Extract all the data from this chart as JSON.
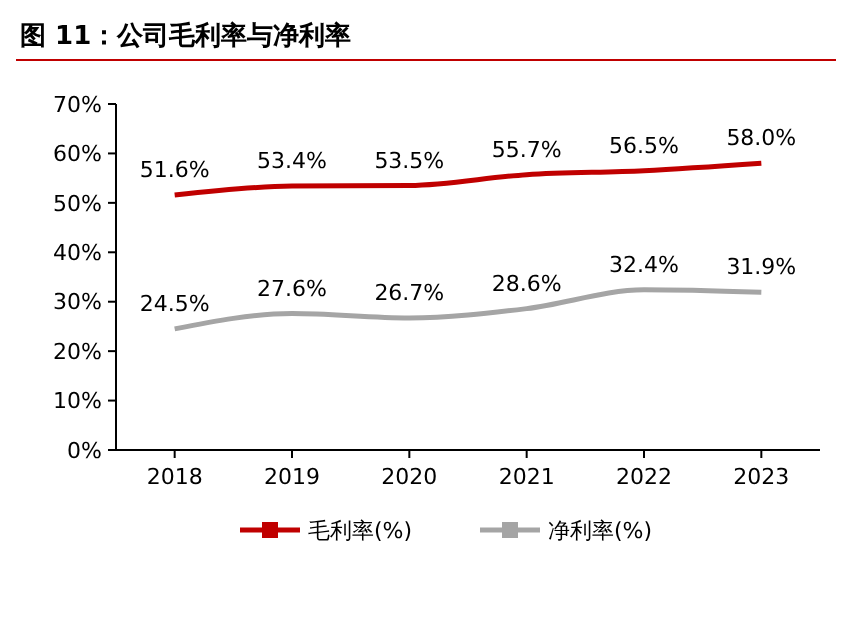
{
  "chart_data": {
    "type": "line",
    "title": "图 11：公司毛利率与净利率",
    "categories": [
      "2018",
      "2019",
      "2020",
      "2021",
      "2022",
      "2023"
    ],
    "series": [
      {
        "name": "毛利率(%)",
        "color": "#c00000",
        "values": [
          51.6,
          53.4,
          53.5,
          55.7,
          56.5,
          58.0
        ],
        "value_labels": [
          "51.6%",
          "53.4%",
          "53.5%",
          "55.7%",
          "56.5%",
          "58.0%"
        ]
      },
      {
        "name": "净利率(%)",
        "color": "#a5a5a5",
        "values": [
          24.5,
          27.6,
          26.7,
          28.6,
          32.4,
          31.9
        ],
        "value_labels": [
          "24.5%",
          "27.6%",
          "26.7%",
          "28.6%",
          "32.4%",
          "31.9%"
        ]
      }
    ],
    "ylim": [
      0,
      70
    ],
    "yticks": [
      {
        "value": 0,
        "label": "0%"
      },
      {
        "value": 10,
        "label": "10%"
      },
      {
        "value": 20,
        "label": "20%"
      },
      {
        "value": 30,
        "label": "30%"
      },
      {
        "value": 40,
        "label": "40%"
      },
      {
        "value": 50,
        "label": "50%"
      },
      {
        "value": 60,
        "label": "60%"
      },
      {
        "value": 70,
        "label": "70%"
      }
    ],
    "grid": false,
    "legend": "bottom",
    "line_style": "solid"
  }
}
